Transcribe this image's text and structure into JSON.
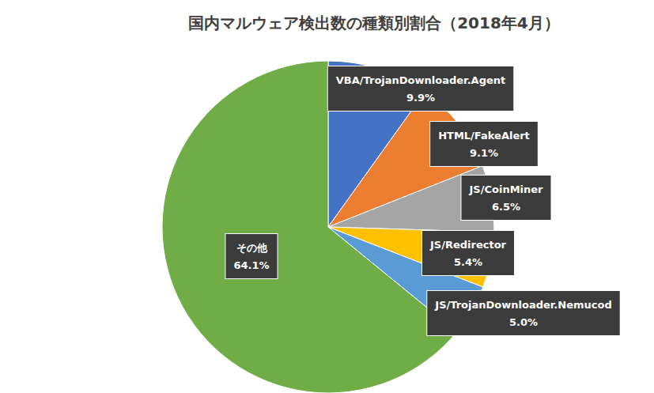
{
  "chart_data": {
    "type": "pie",
    "title": "国内マルウェア検出数の種類別割合（2018年4月）",
    "categories": [
      "VBA/TrojanDownloader.Agent",
      "HTML/FakeAlert",
      "JS/CoinMiner",
      "JS/Redirector",
      "JS/TrojanDownloader.Nemucod",
      "その他"
    ],
    "values": [
      9.9,
      9.1,
      6.5,
      5.4,
      5.0,
      64.1
    ],
    "value_labels": [
      "9.9%",
      "9.1%",
      "6.5%",
      "5.4%",
      "5.0%",
      "64.1%"
    ],
    "colors": [
      "#4472c4",
      "#ed7d31",
      "#a5a5a5",
      "#ffc000",
      "#5b9bd5",
      "#70ad47"
    ],
    "data_labels": true
  }
}
